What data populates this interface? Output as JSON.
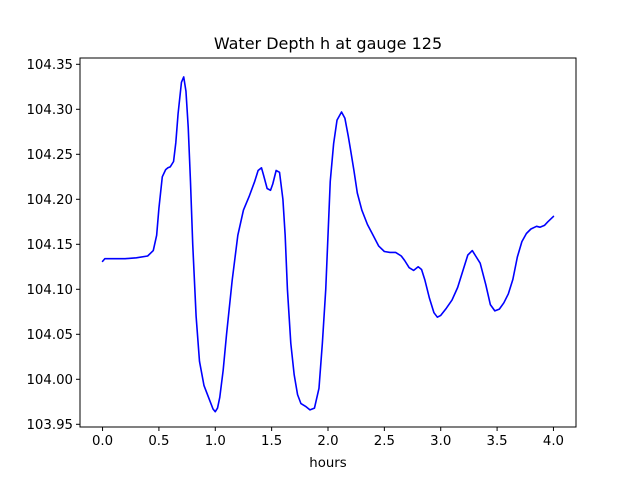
{
  "chart_data": {
    "type": "line",
    "title": "Water Depth h at gauge 125",
    "xlabel": "hours",
    "ylabel": "",
    "xlim": [
      -0.2,
      4.2
    ],
    "ylim": [
      103.947,
      104.357
    ],
    "x_ticks": [
      0.0,
      0.5,
      1.0,
      1.5,
      2.0,
      2.5,
      3.0,
      3.5,
      4.0
    ],
    "x_tick_labels": [
      "0.0",
      "0.5",
      "1.0",
      "1.5",
      "2.0",
      "2.5",
      "3.0",
      "3.5",
      "4.0"
    ],
    "y_ticks": [
      103.95,
      104.0,
      104.05,
      104.1,
      104.15,
      104.2,
      104.25,
      104.3,
      104.35
    ],
    "y_tick_labels": [
      "103.95",
      "104.00",
      "104.05",
      "104.10",
      "104.15",
      "104.20",
      "104.25",
      "104.30",
      "104.35"
    ],
    "grid": false,
    "legend": "none",
    "series": [
      {
        "color": "#0000ff",
        "x": [
          0.0,
          0.02,
          0.1,
          0.2,
          0.3,
          0.4,
          0.45,
          0.48,
          0.5,
          0.53,
          0.56,
          0.58,
          0.6,
          0.63,
          0.65,
          0.67,
          0.7,
          0.72,
          0.74,
          0.76,
          0.78,
          0.8,
          0.83,
          0.86,
          0.9,
          0.94,
          0.98,
          1.0,
          1.02,
          1.04,
          1.07,
          1.1,
          1.15,
          1.2,
          1.25,
          1.3,
          1.35,
          1.38,
          1.41,
          1.43,
          1.46,
          1.49,
          1.51,
          1.54,
          1.57,
          1.6,
          1.62,
          1.64,
          1.67,
          1.7,
          1.73,
          1.76,
          1.8,
          1.84,
          1.88,
          1.92,
          1.95,
          1.98,
          2.0,
          2.02,
          2.05,
          2.08,
          2.12,
          2.15,
          2.18,
          2.2,
          2.23,
          2.26,
          2.3,
          2.35,
          2.4,
          2.45,
          2.5,
          2.55,
          2.6,
          2.65,
          2.68,
          2.72,
          2.76,
          2.8,
          2.83,
          2.86,
          2.9,
          2.94,
          2.97,
          3.0,
          3.05,
          3.1,
          3.15,
          3.2,
          3.24,
          3.28,
          3.31,
          3.35,
          3.4,
          3.44,
          3.48,
          3.52,
          3.56,
          3.6,
          3.64,
          3.68,
          3.72,
          3.76,
          3.8,
          3.85,
          3.88,
          3.92,
          3.95,
          4.0
        ],
        "y": [
          104.131,
          104.134,
          104.134,
          104.134,
          104.135,
          104.137,
          104.143,
          104.16,
          104.19,
          104.225,
          104.233,
          104.235,
          104.236,
          104.242,
          104.263,
          104.295,
          104.33,
          104.336,
          104.32,
          104.28,
          104.22,
          104.15,
          104.07,
          104.02,
          103.993,
          103.98,
          103.967,
          103.964,
          103.968,
          103.98,
          104.01,
          104.05,
          104.11,
          104.16,
          104.188,
          104.203,
          104.22,
          104.232,
          104.235,
          104.226,
          104.212,
          104.21,
          104.217,
          104.232,
          104.23,
          104.2,
          104.16,
          104.1,
          104.04,
          104.005,
          103.983,
          103.973,
          103.97,
          103.966,
          103.968,
          103.99,
          104.04,
          104.1,
          104.16,
          104.22,
          104.262,
          104.288,
          104.297,
          104.29,
          104.27,
          104.255,
          104.232,
          104.207,
          104.188,
          104.172,
          104.16,
          104.148,
          104.142,
          104.141,
          104.141,
          104.137,
          104.132,
          104.124,
          104.121,
          104.125,
          104.122,
          104.11,
          104.09,
          104.074,
          104.069,
          104.071,
          104.079,
          104.088,
          104.102,
          104.122,
          104.138,
          104.143,
          104.137,
          104.129,
          104.105,
          104.083,
          104.076,
          104.078,
          104.085,
          104.095,
          104.111,
          104.136,
          104.153,
          104.162,
          104.167,
          104.17,
          104.169,
          104.171,
          104.175,
          104.181
        ]
      }
    ]
  }
}
